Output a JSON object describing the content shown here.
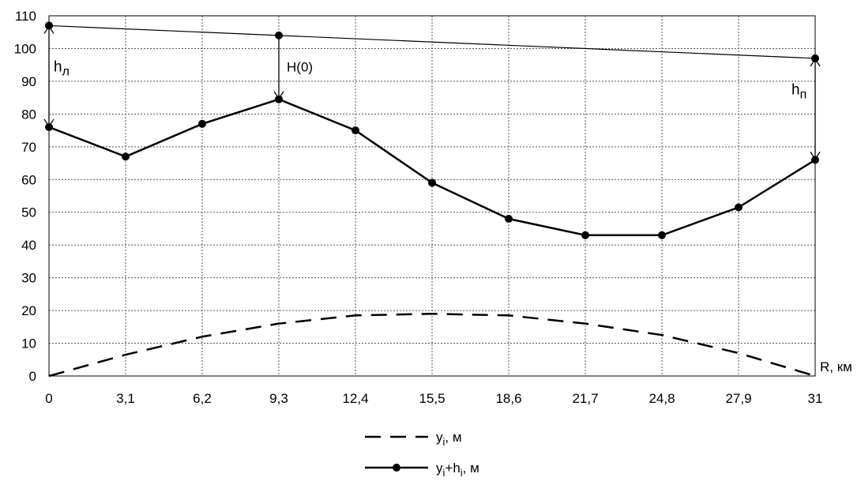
{
  "chart_data": {
    "type": "line",
    "x": [
      0,
      3.1,
      6.2,
      9.3,
      12.4,
      15.5,
      18.6,
      21.7,
      24.8,
      27.9,
      31
    ],
    "x_tick_labels": [
      "0",
      "3,1",
      "6,2",
      "9,3",
      "12,4",
      "15,5",
      "18,6",
      "21,7",
      "24,8",
      "27,9",
      "31"
    ],
    "y_tick_labels": [
      "0",
      "10",
      "20",
      "30",
      "40",
      "50",
      "60",
      "70",
      "80",
      "90",
      "100",
      "110"
    ],
    "ylim": [
      0,
      110
    ],
    "xlim": [
      0,
      31
    ],
    "grid": true,
    "legend_position": "bottom-center",
    "series": [
      {
        "name_main": "y",
        "name_sub": "i",
        "name_rest": ", м",
        "style": "dashed",
        "values": [
          0,
          6.5,
          12,
          16,
          18.5,
          19,
          18.5,
          16,
          12.5,
          7,
          0
        ]
      },
      {
        "name_main": "y",
        "name_sub": "i",
        "name_plus": "+h",
        "name_sub2": "i",
        "name_rest": ", м",
        "style": "solid-markers",
        "values": [
          76,
          67,
          77,
          84.5,
          75,
          59,
          48,
          43,
          43,
          51.5,
          66
        ]
      }
    ],
    "line_of_sight": {
      "x": [
        0,
        9.3,
        31
      ],
      "y": [
        107,
        104,
        97
      ]
    },
    "annotations": {
      "h_left": {
        "main": "h",
        "sub": "л",
        "x": 0,
        "from": 76,
        "to": 107
      },
      "h_center": {
        "label": "H(0)",
        "x": 9.3,
        "from": 84.5,
        "to": 104
      },
      "h_right": {
        "main": "h",
        "sub": "п",
        "x": 31,
        "from": 66,
        "to": 97
      }
    },
    "axis_label_x": "R, км"
  }
}
